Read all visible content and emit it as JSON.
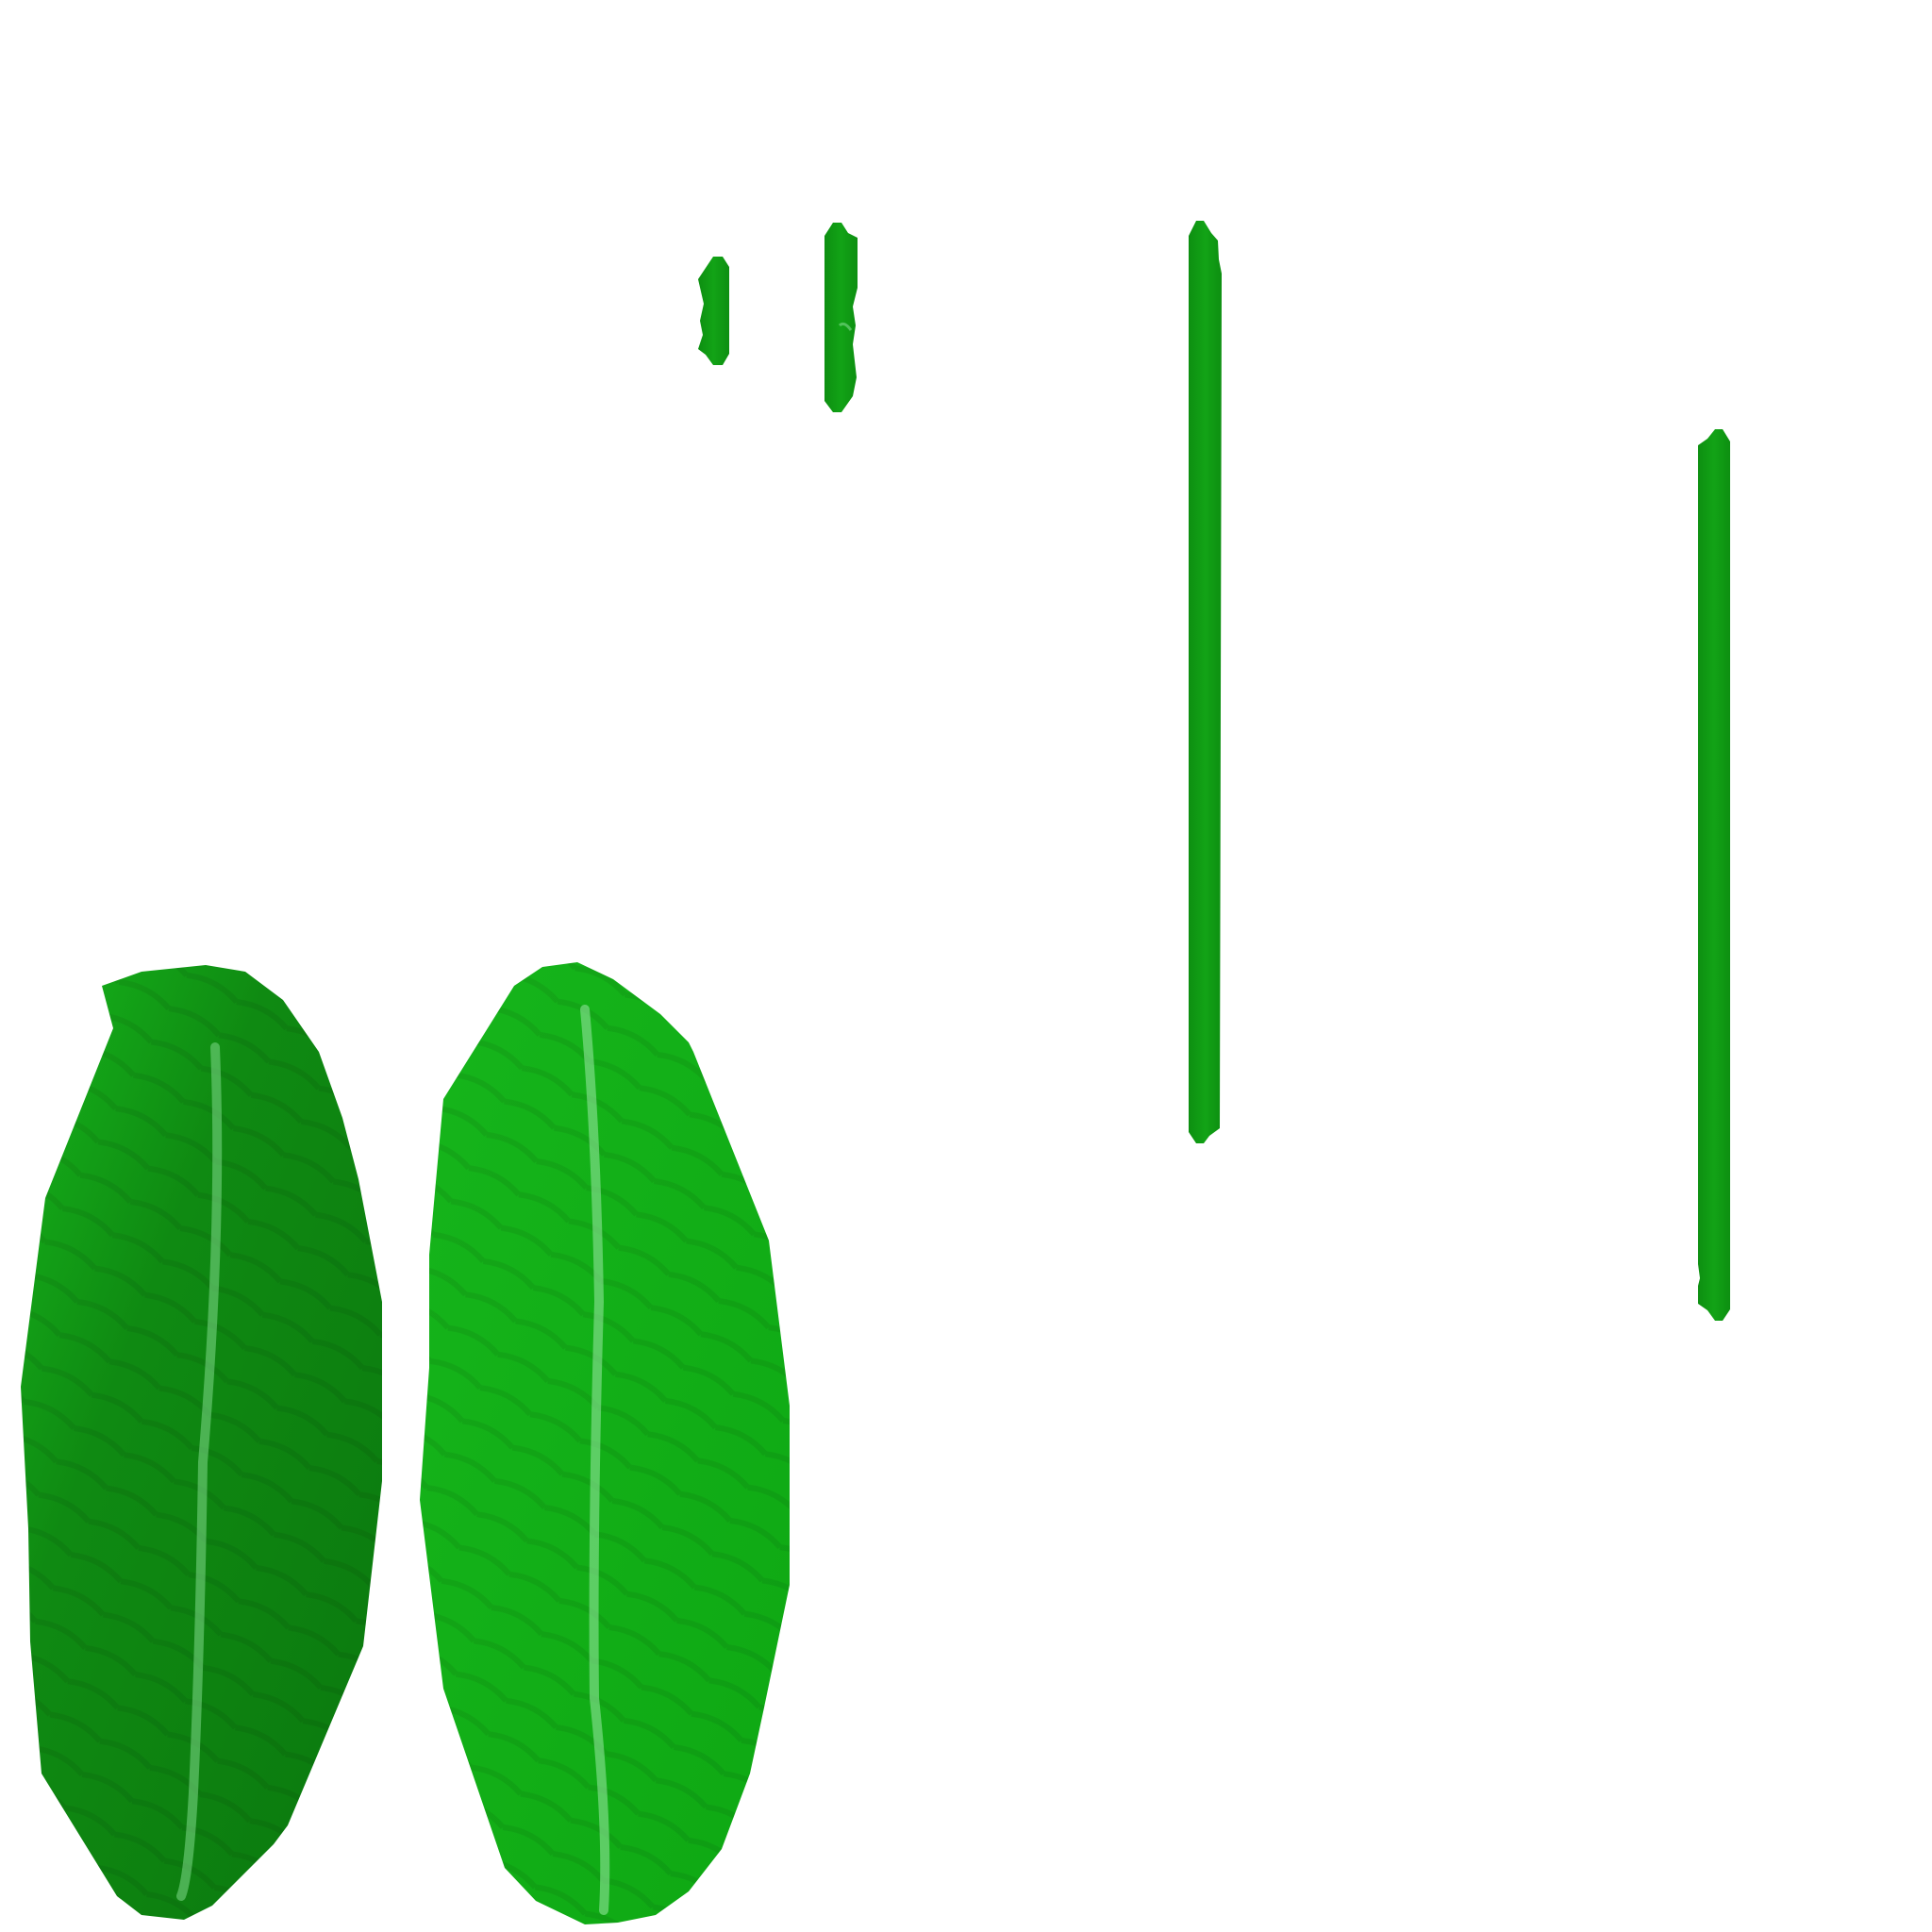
{
  "texture_atlas": {
    "background_color": "#ffffff",
    "palette": {
      "leaf_dark_base": "#0f8a12",
      "leaf_dark_shadow": "#0b780e",
      "leaf_bright_base": "#0ea813",
      "leaf_bright_highlight": "#16b51b",
      "vein": "#7fd98a",
      "stem_base": "#12a316",
      "stem_shadow": "#0d8f11"
    },
    "sprites": [
      {
        "name": "leaf-blade-dark",
        "kind": "leaf"
      },
      {
        "name": "leaf-blade-bright",
        "kind": "leaf"
      },
      {
        "name": "stem-short",
        "kind": "stem"
      },
      {
        "name": "stem-medium",
        "kind": "stem"
      },
      {
        "name": "stem-long",
        "kind": "stem"
      },
      {
        "name": "stem-tall",
        "kind": "stem"
      }
    ]
  }
}
